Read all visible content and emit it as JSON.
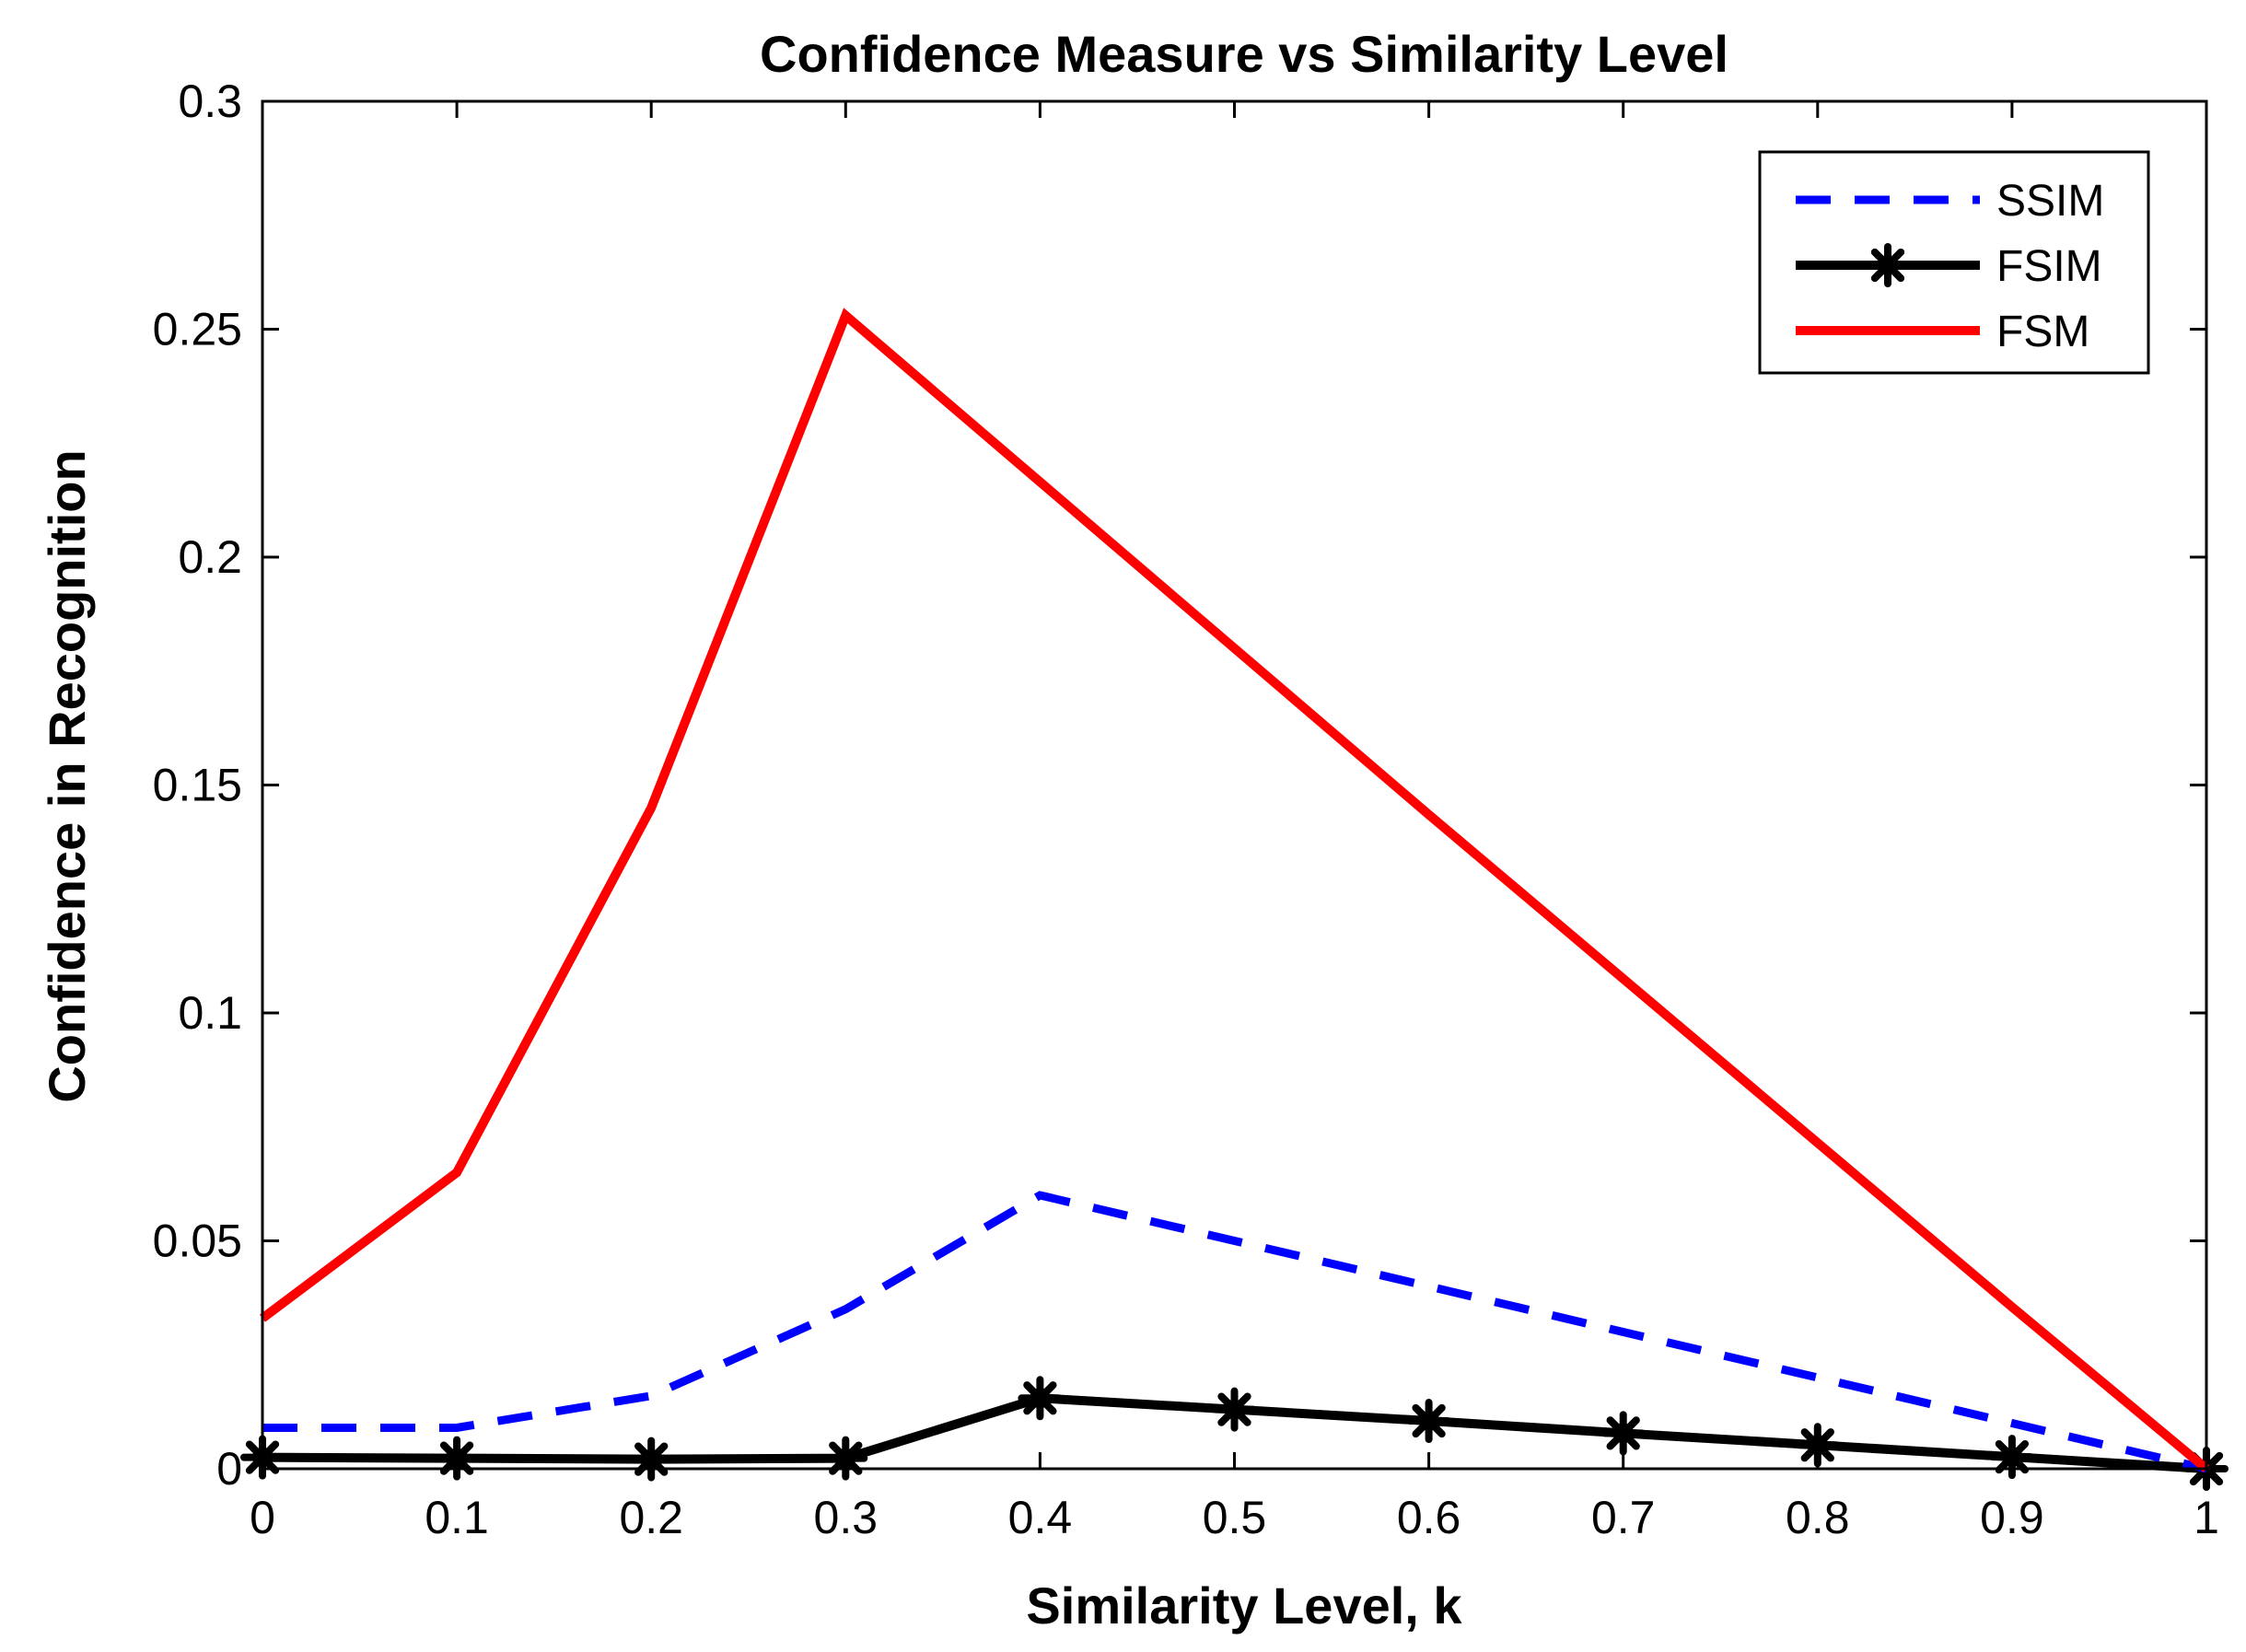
{
  "chart_data": {
    "type": "line",
    "title": "Confidence Measure vs Similarity Level",
    "xlabel": "Similarity Level, k",
    "ylabel": "Confidence in Recognition",
    "xlim": [
      0,
      1
    ],
    "ylim": [
      0,
      0.3
    ],
    "x_ticks": [
      0,
      0.1,
      0.2,
      0.3,
      0.4,
      0.5,
      0.6,
      0.7,
      0.8,
      0.9,
      1
    ],
    "x_tick_labels": [
      "0",
      "0.1",
      "0.2",
      "0.3",
      "0.4",
      "0.5",
      "0.6",
      "0.7",
      "0.8",
      "0.9",
      "1"
    ],
    "y_ticks": [
      0,
      0.05,
      0.1,
      0.15,
      0.2,
      0.25,
      0.3
    ],
    "y_tick_labels": [
      "0",
      "0.05",
      "0.1",
      "0.15",
      "0.2",
      "0.25",
      "0.3"
    ],
    "grid": false,
    "legend_position": "top-right",
    "x": [
      0,
      0.1,
      0.2,
      0.3,
      0.4,
      0.5,
      0.6,
      0.7,
      0.8,
      0.9,
      1
    ],
    "series": [
      {
        "name": "SSIM",
        "color": "#0000ff",
        "style": "dashed",
        "marker": "none",
        "values": [
          0.009,
          0.009,
          0.016,
          0.035,
          0.06,
          0.05,
          0.04,
          0.03,
          0.02,
          0.01,
          0.0
        ]
      },
      {
        "name": "FSIM",
        "color": "#000000",
        "style": "solid",
        "marker": "asterisk",
        "values": [
          0.0025,
          0.0023,
          0.0021,
          0.0023,
          0.0155,
          0.013,
          0.0105,
          0.0078,
          0.0052,
          0.0026,
          0.0
        ]
      },
      {
        "name": "FSM",
        "color": "#ff0000",
        "style": "solid",
        "marker": "none",
        "values": [
          0.033,
          0.065,
          0.145,
          0.253,
          0.2165,
          0.18,
          0.1435,
          0.1075,
          0.0715,
          0.0355,
          0.0
        ]
      }
    ]
  }
}
